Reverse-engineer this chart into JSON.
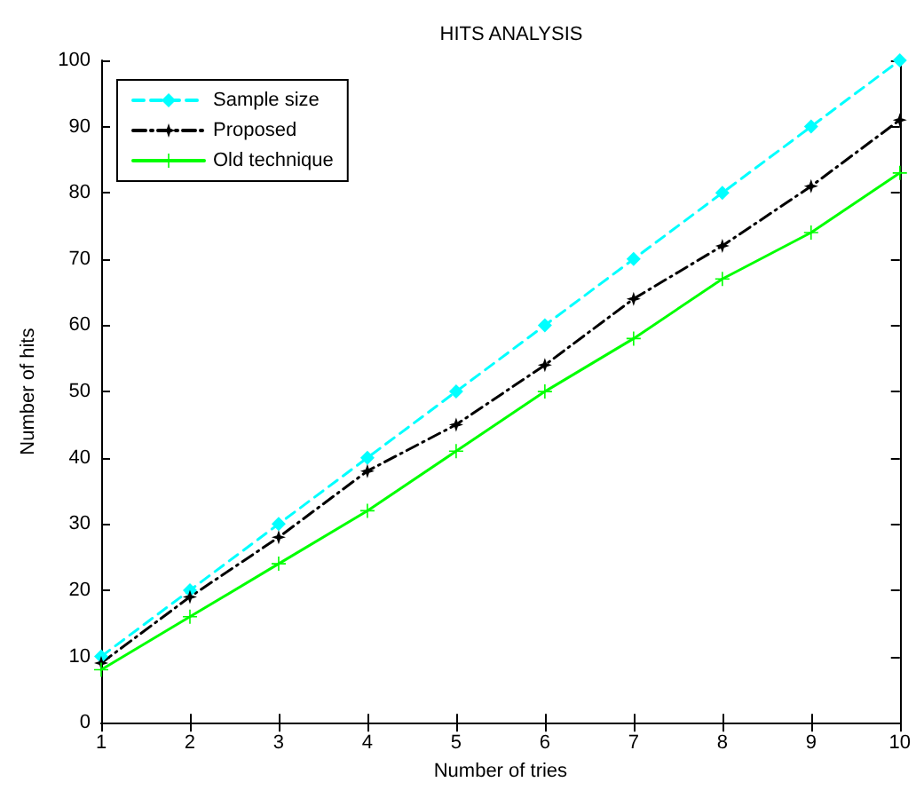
{
  "chart_data": {
    "type": "line",
    "title": "HITS ANALYSIS",
    "xlabel": "Number of tries",
    "ylabel": "Number of hits",
    "x": [
      1,
      2,
      3,
      4,
      5,
      6,
      7,
      8,
      9,
      10
    ],
    "series": [
      {
        "name": "Sample size",
        "color": "#00ffff",
        "line_style": "dashed",
        "marker": "diamond",
        "values": [
          10,
          20,
          30,
          40,
          50,
          60,
          70,
          80,
          90,
          100
        ]
      },
      {
        "name": "Proposed",
        "color": "#000000",
        "line_style": "dashdot",
        "marker": "star",
        "values": [
          9,
          19,
          28,
          38,
          45,
          54,
          64,
          72,
          81,
          91
        ]
      },
      {
        "name": "Old technique",
        "color": "#00ff00",
        "line_style": "solid",
        "marker": "cross",
        "values": [
          8,
          16,
          24,
          32,
          41,
          50,
          58,
          67,
          74,
          83
        ]
      }
    ],
    "xlim": [
      1,
      10
    ],
    "xticks": [
      1,
      2,
      3,
      4,
      5,
      6,
      7,
      8,
      9,
      10
    ],
    "ylim": [
      0,
      100
    ],
    "yticks": [
      0,
      10,
      20,
      30,
      40,
      50,
      60,
      70,
      80,
      90,
      100
    ],
    "grid": false,
    "legend": "top left"
  }
}
